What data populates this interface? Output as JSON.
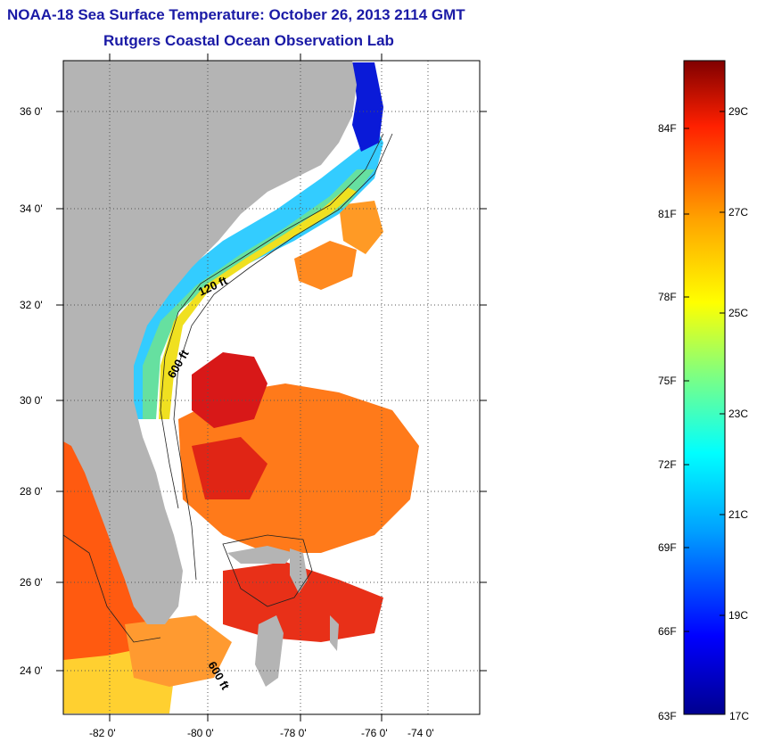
{
  "header": {
    "title": "NOAA-18 Sea Surface Temperature:  October 26, 2013 2114 GMT",
    "subtitle": "Rutgers Coastal Ocean Observation Lab"
  },
  "map": {
    "lat_labels": [
      "36 0'",
      "34 0'",
      "32 0'",
      "30 0'",
      "28 0'",
      "26 0'",
      "24 0'"
    ],
    "lon_labels": [
      "-82 0'",
      "-80 0'",
      "-78 0'",
      "-76 0'",
      "-74 0'"
    ],
    "contour_labels": [
      "120 ft",
      "600 ft",
      "600 ft"
    ],
    "land_color": "#b4b4b4",
    "cloud_color": "#ffffff"
  },
  "colorbar": {
    "f_labels": [
      "84F",
      "81F",
      "78F",
      "75F",
      "72F",
      "69F",
      "66F",
      "63F"
    ],
    "c_labels": [
      "29C",
      "27C",
      "25C",
      "23C",
      "21C",
      "19C",
      "17C"
    ],
    "colors": [
      "#00008f",
      "#0000ff",
      "#00a0ff",
      "#00ffff",
      "#80ff80",
      "#ffff00",
      "#ffa000",
      "#ff2000",
      "#800000"
    ]
  }
}
